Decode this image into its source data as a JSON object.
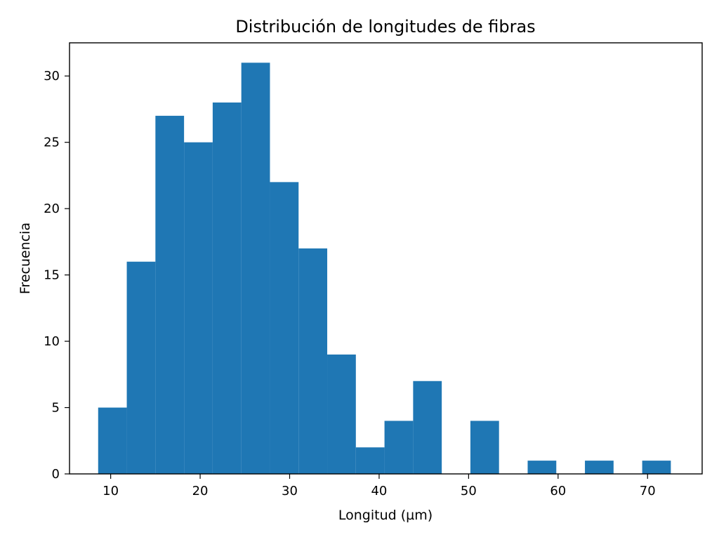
{
  "chart_data": {
    "type": "bar",
    "title": "Distribución de longitudes de fibras",
    "xlabel": "Longitud (µm)",
    "ylabel": "Frecuencia",
    "xlim": [
      5.4,
      76.1
    ],
    "ylim": [
      0,
      32.5
    ],
    "xticks": [
      10,
      20,
      30,
      40,
      50,
      60,
      70
    ],
    "yticks": [
      0,
      5,
      10,
      15,
      20,
      25,
      30
    ],
    "xtick_labels": [
      "10",
      "20",
      "30",
      "40",
      "50",
      "60",
      "70"
    ],
    "ytick_labels": [
      "0",
      "5",
      "10",
      "15",
      "20",
      "25",
      "30"
    ],
    "grid": false,
    "bar_color": "#1f77b4",
    "bins": [
      {
        "x0": 8.6,
        "x1": 11.8,
        "count": 5
      },
      {
        "x0": 11.8,
        "x1": 15.0,
        "count": 16
      },
      {
        "x0": 15.0,
        "x1": 18.2,
        "count": 27
      },
      {
        "x0": 18.2,
        "x1": 21.4,
        "count": 25
      },
      {
        "x0": 21.4,
        "x1": 24.6,
        "count": 28
      },
      {
        "x0": 24.6,
        "x1": 27.8,
        "count": 31
      },
      {
        "x0": 27.8,
        "x1": 31.0,
        "count": 22
      },
      {
        "x0": 31.0,
        "x1": 34.2,
        "count": 17
      },
      {
        "x0": 34.2,
        "x1": 37.4,
        "count": 9
      },
      {
        "x0": 37.4,
        "x1": 40.6,
        "count": 2
      },
      {
        "x0": 40.6,
        "x1": 43.8,
        "count": 4
      },
      {
        "x0": 43.8,
        "x1": 47.0,
        "count": 7
      },
      {
        "x0": 47.0,
        "x1": 50.2,
        "count": 0
      },
      {
        "x0": 50.2,
        "x1": 53.4,
        "count": 4
      },
      {
        "x0": 53.4,
        "x1": 56.6,
        "count": 0
      },
      {
        "x0": 56.6,
        "x1": 59.8,
        "count": 1
      },
      {
        "x0": 59.8,
        "x1": 63.0,
        "count": 0
      },
      {
        "x0": 63.0,
        "x1": 66.2,
        "count": 1
      },
      {
        "x0": 66.2,
        "x1": 69.4,
        "count": 0
      },
      {
        "x0": 69.4,
        "x1": 72.6,
        "count": 1
      }
    ]
  }
}
